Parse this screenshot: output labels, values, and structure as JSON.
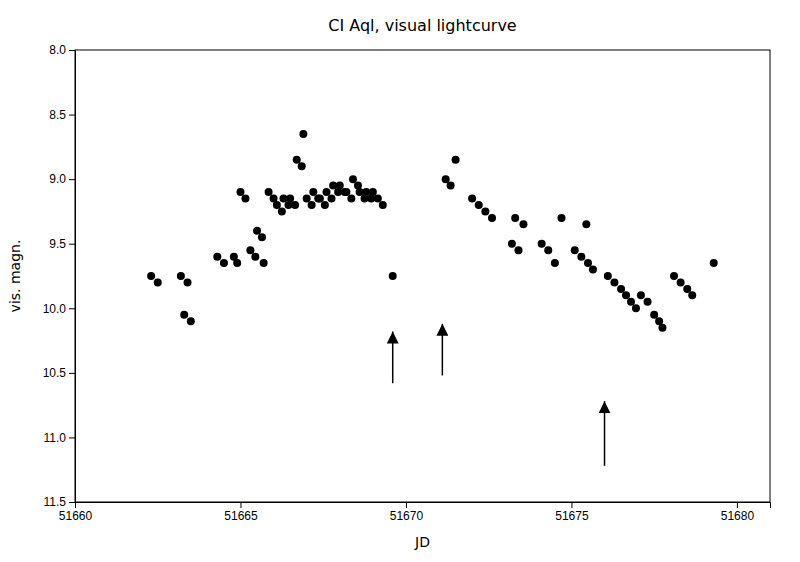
{
  "chart_data": {
    "type": "scatter",
    "title": "CI Aql, visual lightcurve",
    "xlabel": "JD",
    "ylabel": "vis. magn.",
    "xlim": [
      51660,
      51681
    ],
    "ylim": [
      11.5,
      8.0
    ],
    "xticks": [
      51660,
      51665,
      51670,
      51675,
      51680
    ],
    "yticks": [
      {
        "value": 8.0,
        "label": "8.0"
      },
      {
        "value": 8.5,
        "label": "8.5"
      },
      {
        "value": 9.0,
        "label": "9.0"
      },
      {
        "value": 9.5,
        "label": "9.5"
      },
      {
        "value": 10.0,
        "label": "10.0"
      },
      {
        "value": 10.5,
        "label": "10.5"
      },
      {
        "value": 11.0,
        "label": "11.0"
      },
      {
        "value": 11.5,
        "label": "11.5"
      }
    ],
    "color": "black",
    "grid": false,
    "x": [
      51662.3,
      51662.5,
      51663.2,
      51663.4,
      51663.3,
      51663.5,
      51664.3,
      51664.5,
      51664.8,
      51664.9,
      51665.0,
      51665.15,
      51665.3,
      51665.45,
      51665.5,
      51665.65,
      51665.7,
      51665.85,
      51666.0,
      51666.1,
      51666.25,
      51666.3,
      51666.45,
      51666.5,
      51666.65,
      51666.7,
      51666.85,
      51666.9,
      51667.0,
      51667.15,
      51667.2,
      51667.35,
      51667.4,
      51667.55,
      51667.6,
      51667.75,
      51667.8,
      51667.95,
      51668.0,
      51668.15,
      51668.2,
      51668.35,
      51668.4,
      51668.55,
      51668.6,
      51668.75,
      51668.8,
      51668.95,
      51669.0,
      51669.15,
      51669.3,
      51669.6,
      51671.2,
      51671.35,
      51671.5,
      51672.0,
      51672.2,
      51672.4,
      51672.6,
      51673.2,
      51673.4,
      51673.3,
      51673.55,
      51674.1,
      51674.3,
      51674.5,
      51674.7,
      51675.1,
      51675.3,
      51675.5,
      51675.65,
      51675.45,
      51676.1,
      51676.3,
      51676.5,
      51676.65,
      51676.8,
      51676.95,
      51677.1,
      51677.3,
      51677.5,
      51677.65,
      51677.75,
      51678.1,
      51678.3,
      51678.5,
      51678.65,
      51679.3
    ],
    "values": [
      9.75,
      9.8,
      9.75,
      9.8,
      10.05,
      10.1,
      9.6,
      9.65,
      9.6,
      9.65,
      9.1,
      9.15,
      9.55,
      9.6,
      9.4,
      9.45,
      9.65,
      9.1,
      9.15,
      9.2,
      9.25,
      9.15,
      9.2,
      9.15,
      9.2,
      8.85,
      8.9,
      8.65,
      9.15,
      9.2,
      9.1,
      9.15,
      9.15,
      9.2,
      9.1,
      9.15,
      9.05,
      9.1,
      9.05,
      9.1,
      9.1,
      9.15,
      9.0,
      9.05,
      9.1,
      9.15,
      9.1,
      9.15,
      9.1,
      9.15,
      9.2,
      9.75,
      9.0,
      9.05,
      8.85,
      9.15,
      9.2,
      9.25,
      9.3,
      9.5,
      9.55,
      9.3,
      9.35,
      9.5,
      9.55,
      9.65,
      9.3,
      9.55,
      9.6,
      9.65,
      9.7,
      9.35,
      9.75,
      9.8,
      9.85,
      9.9,
      9.95,
      10.0,
      9.9,
      9.95,
      10.05,
      10.1,
      10.15,
      9.75,
      9.8,
      9.85,
      9.9,
      9.65
    ],
    "arrows": [
      {
        "x": 51669.6,
        "y_tip": 10.18,
        "y_tail": 10.58
      },
      {
        "x": 51671.1,
        "y_tip": 10.12,
        "y_tail": 10.52
      },
      {
        "x": 51676.0,
        "y_tip": 10.72,
        "y_tail": 11.22
      }
    ]
  }
}
